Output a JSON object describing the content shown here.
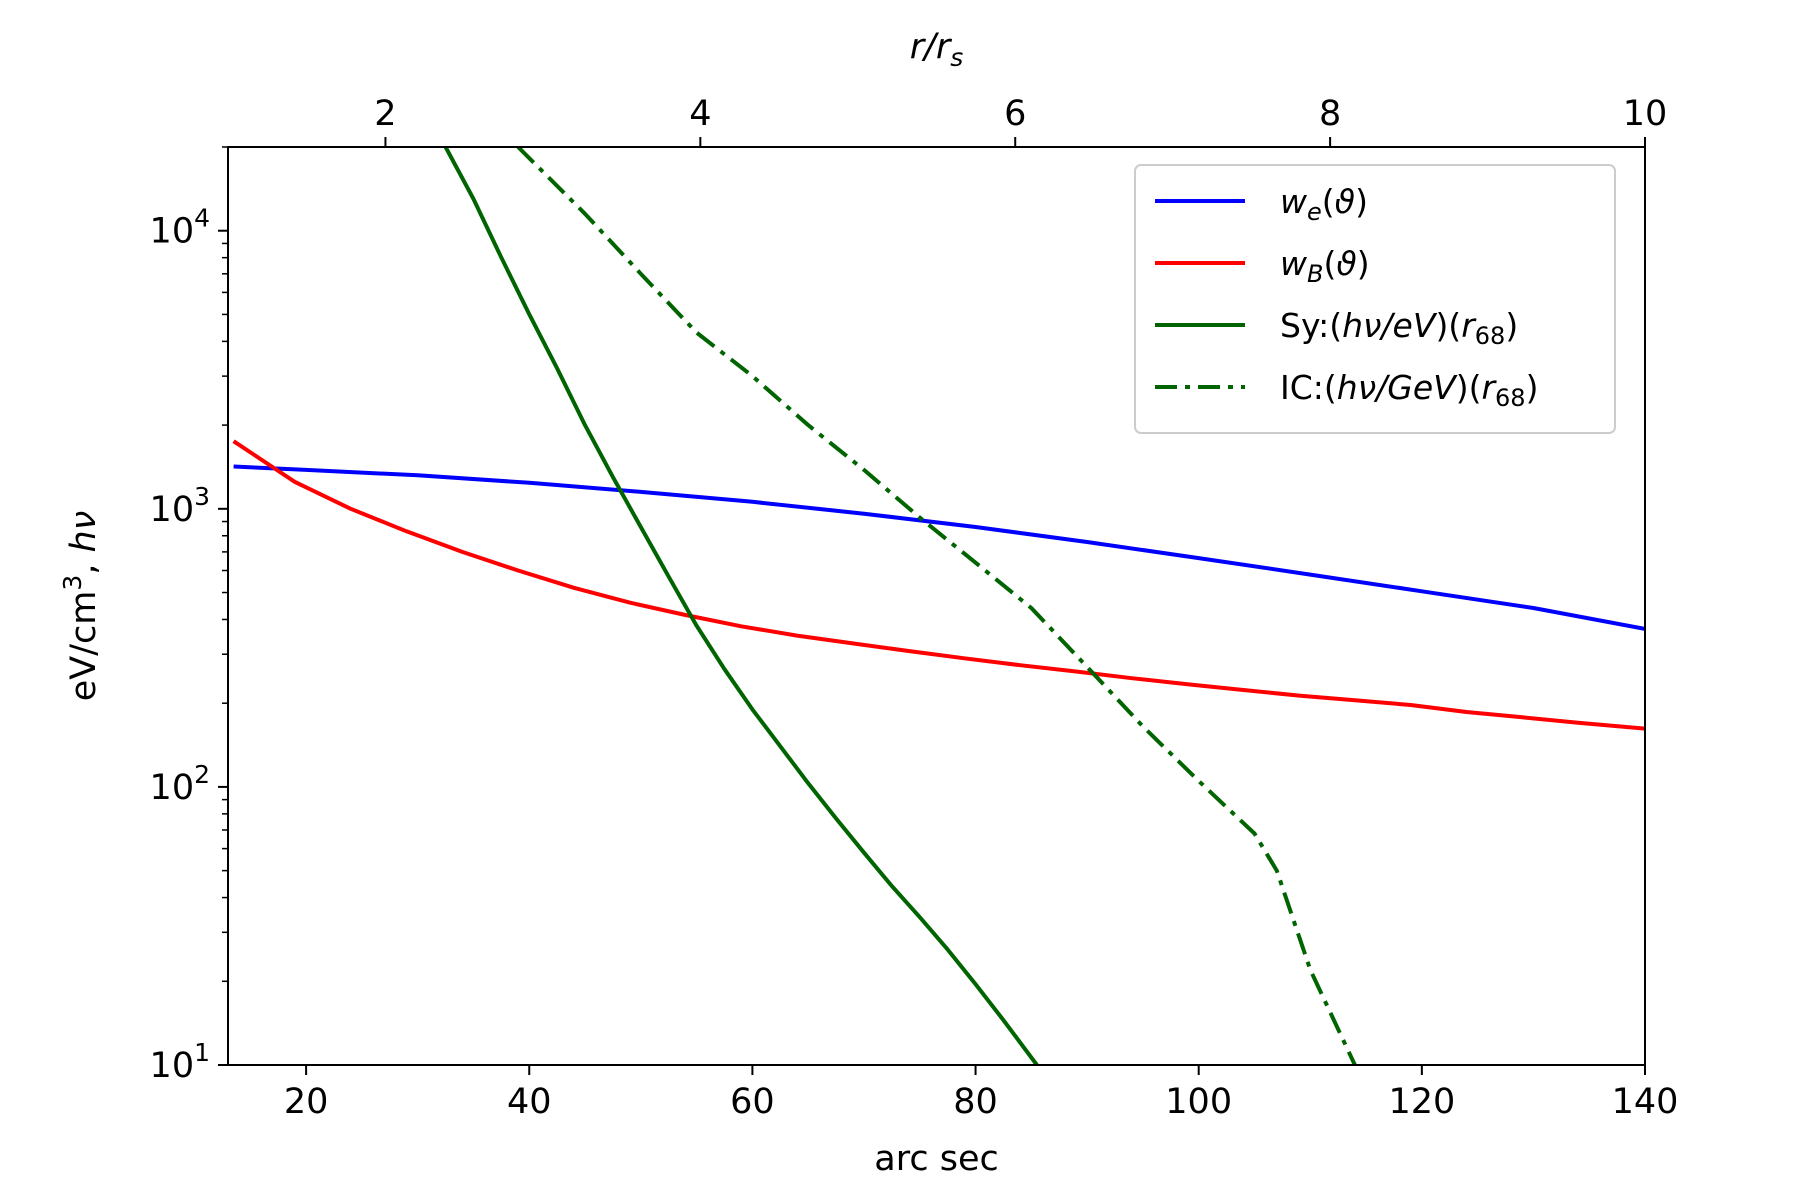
{
  "chart_data": {
    "type": "line",
    "title": "",
    "xlabel": "arc sec",
    "ylabel": "eV/cm³, hν",
    "x2label": "r/rs",
    "xlim": [
      13,
      140
    ],
    "ylim": [
      10,
      20000
    ],
    "yscale": "log",
    "xticks": [
      20,
      40,
      60,
      80,
      100,
      120,
      140
    ],
    "yticks": [
      10,
      100,
      1000,
      10000
    ],
    "x2lim": [
      1,
      10
    ],
    "x2ticks": [
      2,
      4,
      6,
      8,
      10
    ],
    "grid": false,
    "legend_position": "top-right",
    "series": [
      {
        "name": "w_e(ϑ)",
        "color": "#0000ff",
        "style": "solid",
        "x": [
          13.5,
          20,
          30,
          40,
          50,
          60,
          70,
          80,
          90,
          100,
          110,
          120,
          130,
          140
        ],
        "y": [
          1420,
          1380,
          1320,
          1240,
          1150,
          1060,
          960,
          860,
          760,
          665,
          580,
          505,
          440,
          370
        ]
      },
      {
        "name": "w_B(ϑ)",
        "color": "#ff0000",
        "style": "solid",
        "x": [
          13.5,
          19,
          24,
          29,
          34,
          39,
          44,
          49,
          54,
          59,
          64,
          69,
          74,
          79,
          84,
          89,
          94,
          99,
          104,
          109,
          114,
          119,
          124,
          129,
          134,
          140
        ],
        "y": [
          1750,
          1250,
          1000,
          830,
          700,
          600,
          520,
          460,
          415,
          378,
          350,
          328,
          308,
          290,
          274,
          260,
          246,
          234,
          223,
          213,
          205,
          197,
          186,
          178,
          170,
          162
        ]
      },
      {
        "name": "Sy:(hν/eV)(r68)",
        "color": "#006400",
        "style": "solid",
        "x": [
          32.5,
          35,
          37.5,
          40,
          42.5,
          45,
          47.5,
          50,
          52.5,
          55,
          57.5,
          60,
          62.5,
          65,
          67.5,
          70,
          72.5,
          75,
          77.5,
          80,
          82.5,
          85.5
        ],
        "y": [
          20000,
          13000,
          8000,
          5000,
          3200,
          2000,
          1300,
          860,
          570,
          380,
          265,
          190,
          140,
          103,
          77,
          58,
          44,
          34,
          26,
          19.5,
          14.5,
          10
        ]
      },
      {
        "name": "IC:(hν/GeV)(r68)",
        "color": "#006400",
        "style": "dashdot",
        "x": [
          39,
          45,
          50,
          55,
          60,
          65,
          70,
          75,
          80,
          85,
          90,
          95,
          100,
          105,
          107,
          110,
          114
        ],
        "y": [
          20000,
          11500,
          7000,
          4300,
          3000,
          2000,
          1380,
          930,
          640,
          440,
          270,
          165,
          105,
          68,
          50,
          22,
          10
        ]
      }
    ]
  }
}
